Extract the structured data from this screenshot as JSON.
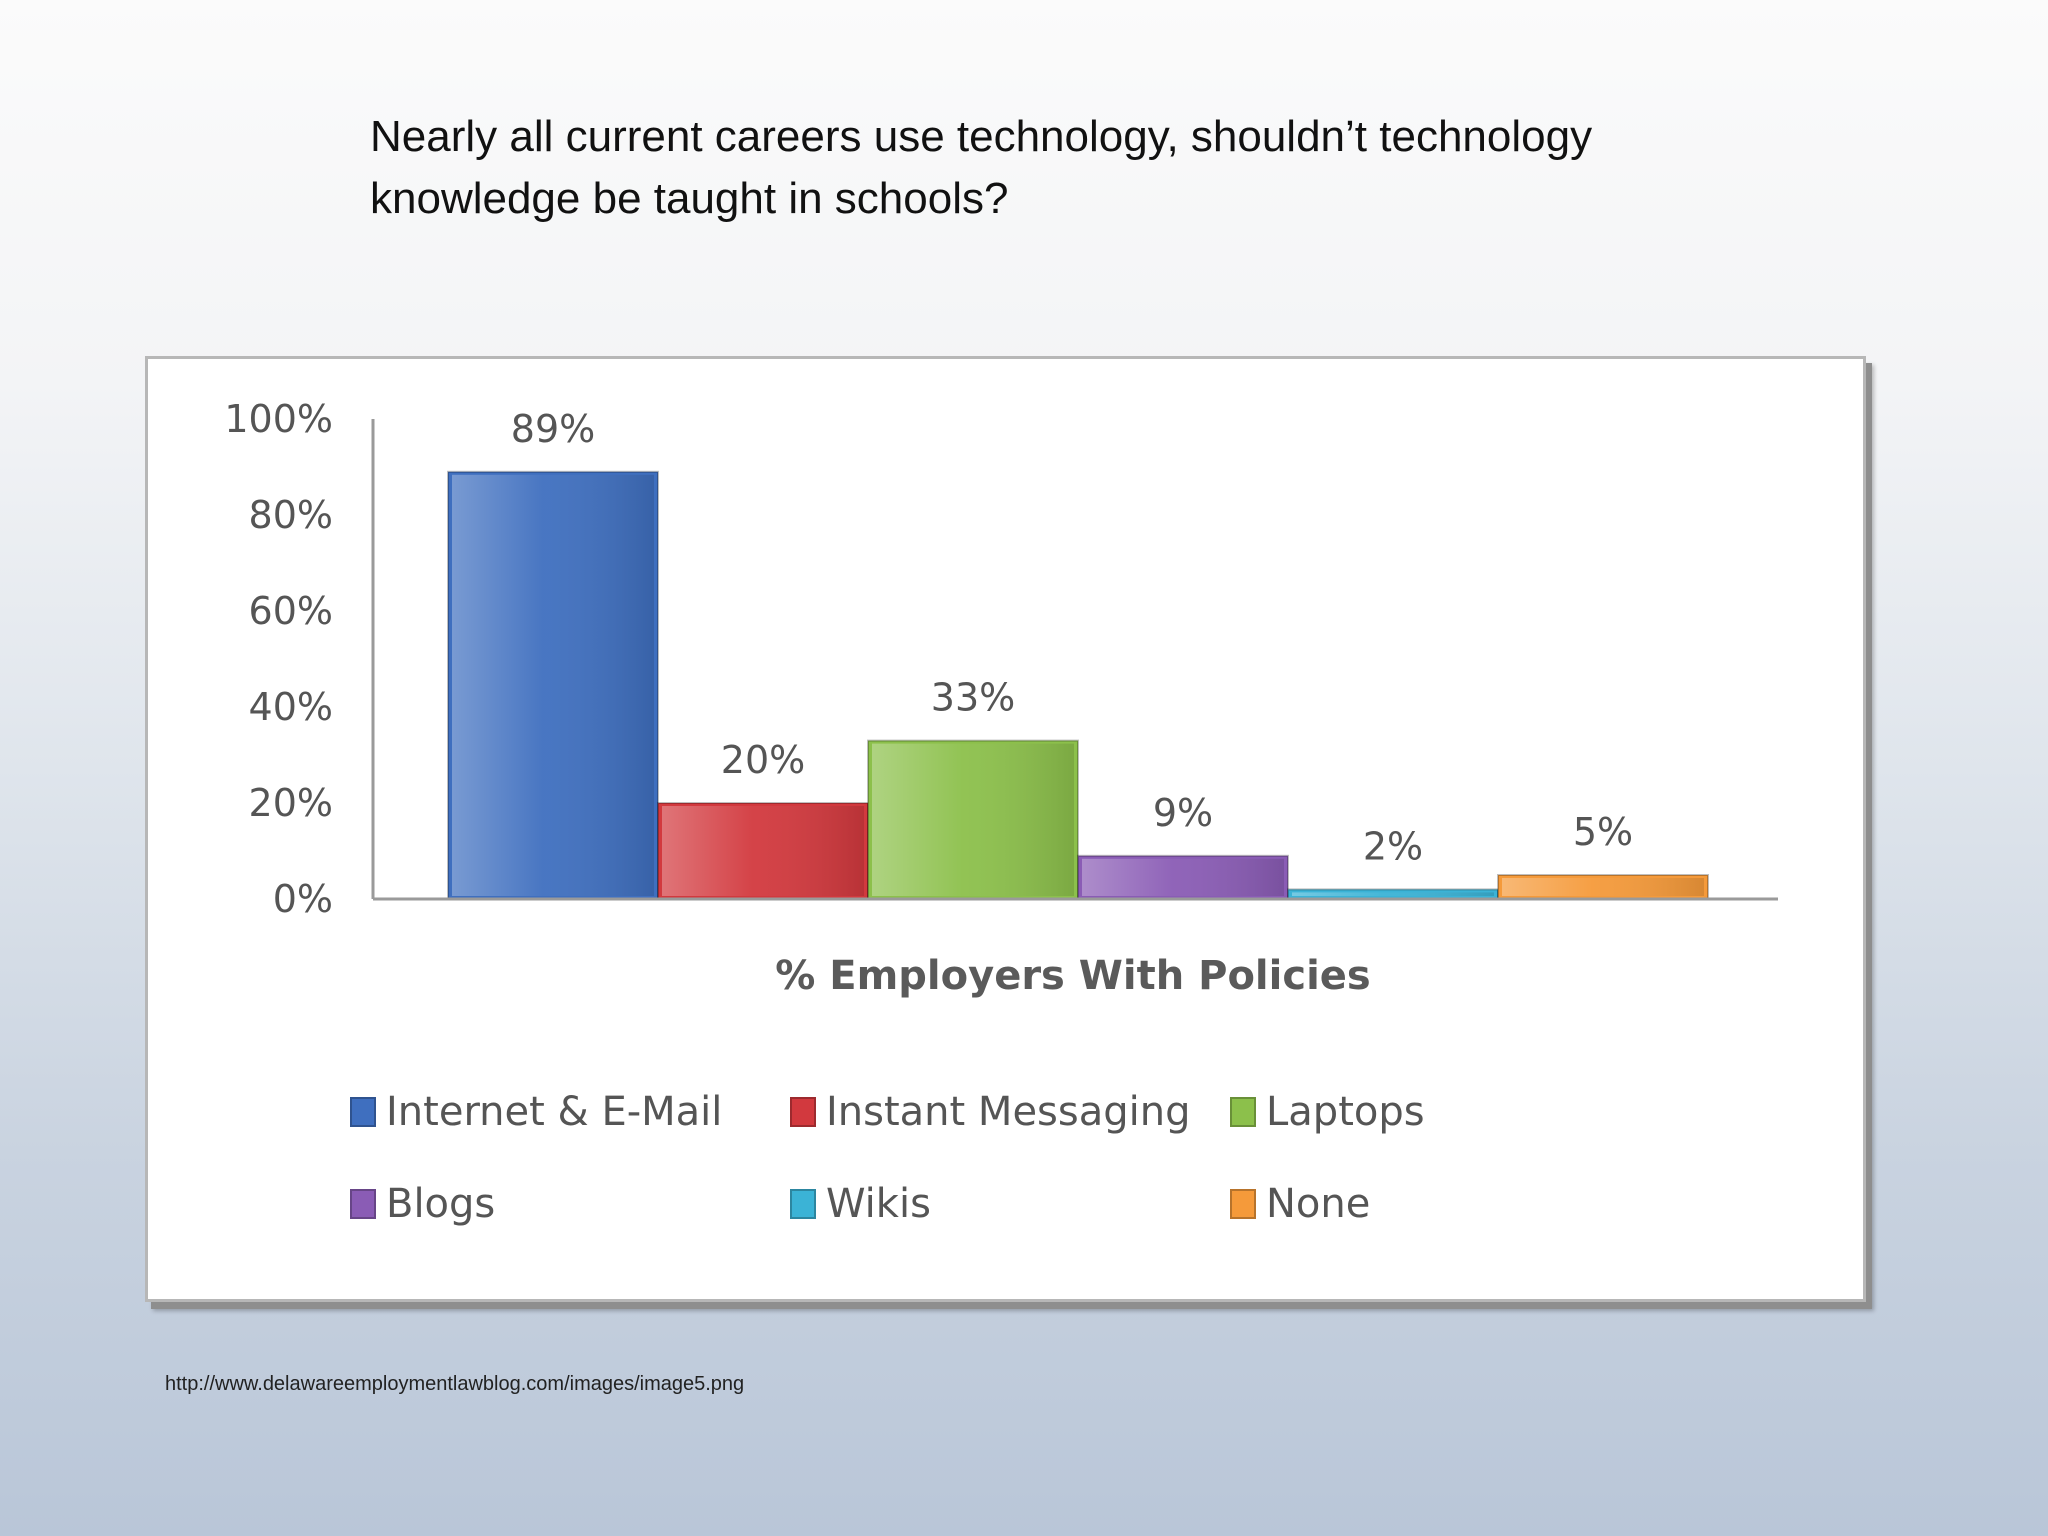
{
  "slide": {
    "title": "Nearly all current careers use technology, shouldn’t technology knowledge be taught in schools?",
    "source": "http://www.delawareemploymentlawblog.com/images/image5.png"
  },
  "chart_data": {
    "type": "bar",
    "title": "",
    "xlabel": "% Employers With Policies",
    "ylabel": "",
    "ylim": [
      0,
      100
    ],
    "yticks": [
      "0%",
      "20%",
      "40%",
      "60%",
      "80%",
      "100%"
    ],
    "grid": false,
    "legend_position": "bottom",
    "series": [
      {
        "name": "Internet & E-Mail",
        "value": 89,
        "label": "89%",
        "color": "#3f6fbf"
      },
      {
        "name": "Instant Messaging",
        "value": 20,
        "label": "20%",
        "color": "#d2393e"
      },
      {
        "name": "Laptops",
        "value": 33,
        "label": "33%",
        "color": "#8cc04b"
      },
      {
        "name": "Blogs",
        "value": 9,
        "label": "9%",
        "color": "#8a5cb5"
      },
      {
        "name": "Wikis",
        "value": 2,
        "label": "2%",
        "color": "#3bb3d6"
      },
      {
        "name": "None",
        "value": 5,
        "label": "5%",
        "color": "#f59a3a"
      }
    ]
  }
}
